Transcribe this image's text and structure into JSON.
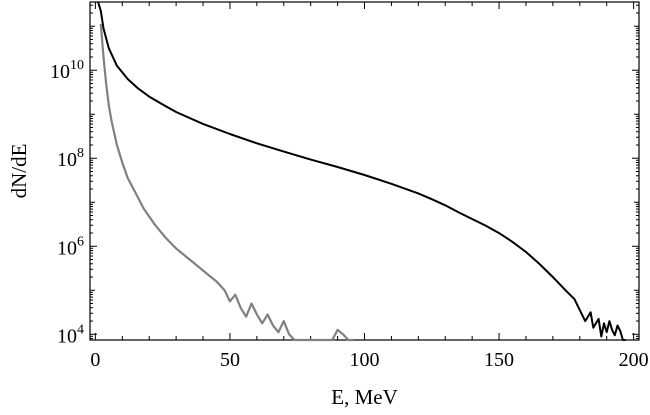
{
  "chart_data": {
    "type": "line",
    "title": "",
    "xlabel": "E, MeV",
    "ylabel": "dN/dE",
    "xlim": [
      -2,
      202
    ],
    "ylim_log10": [
      3.87,
      11.55
    ],
    "yscale": "log",
    "grid": false,
    "legend": "none",
    "x_ticks": [
      {
        "value": 0,
        "label": "0"
      },
      {
        "value": 50,
        "label": "50"
      },
      {
        "value": 100,
        "label": "100"
      },
      {
        "value": 150,
        "label": "150"
      },
      {
        "value": 200,
        "label": "200"
      }
    ],
    "y_ticks": [
      {
        "exp": 4,
        "base": "10",
        "sup": "4"
      },
      {
        "exp": 6,
        "base": "10",
        "sup": "6"
      },
      {
        "exp": 8,
        "base": "10",
        "sup": "8"
      },
      {
        "exp": 10,
        "base": "10",
        "sup": "10"
      }
    ],
    "series": [
      {
        "color": "#000000",
        "x": [
          1,
          2,
          3,
          5,
          8,
          12,
          16,
          20,
          25,
          30,
          40,
          50,
          60,
          70,
          80,
          90,
          100,
          110,
          120,
          125,
          130,
          135,
          140,
          145,
          150,
          155,
          160,
          165,
          170,
          175,
          178,
          180,
          182,
          184,
          185,
          187,
          188,
          189,
          190,
          191,
          192,
          193,
          194,
          195,
          196,
          197
        ],
        "log10y": [
          11.55,
          11.35,
          10.95,
          10.5,
          10.1,
          9.8,
          9.58,
          9.4,
          9.22,
          9.05,
          8.78,
          8.55,
          8.34,
          8.15,
          7.97,
          7.8,
          7.62,
          7.42,
          7.2,
          7.07,
          6.93,
          6.77,
          6.62,
          6.47,
          6.3,
          6.1,
          5.87,
          5.6,
          5.3,
          4.98,
          4.8,
          4.55,
          4.3,
          4.5,
          4.15,
          4.35,
          3.95,
          4.25,
          4.05,
          4.3,
          4.1,
          3.98,
          4.2,
          4.08,
          3.87,
          3.87
        ]
      },
      {
        "color": "#808080",
        "x": [
          2,
          3,
          4,
          5,
          6,
          8,
          10,
          12,
          15,
          18,
          22,
          26,
          30,
          35,
          40,
          45,
          48,
          50,
          52,
          54,
          56,
          58,
          60,
          62,
          64,
          66,
          68,
          70,
          72,
          74,
          76,
          80,
          82,
          86,
          88,
          90,
          92,
          94,
          96
        ],
        "log10y": [
          11.05,
          10.3,
          9.7,
          9.2,
          8.85,
          8.3,
          7.9,
          7.55,
          7.2,
          6.85,
          6.5,
          6.2,
          5.95,
          5.7,
          5.45,
          5.2,
          5.0,
          4.75,
          4.9,
          4.6,
          4.4,
          4.7,
          4.45,
          4.25,
          4.45,
          4.2,
          4.05,
          4.3,
          4.0,
          3.87,
          3.87,
          3.87,
          3.87,
          3.87,
          3.87,
          4.1,
          4.0,
          3.87,
          3.87
        ]
      }
    ]
  }
}
